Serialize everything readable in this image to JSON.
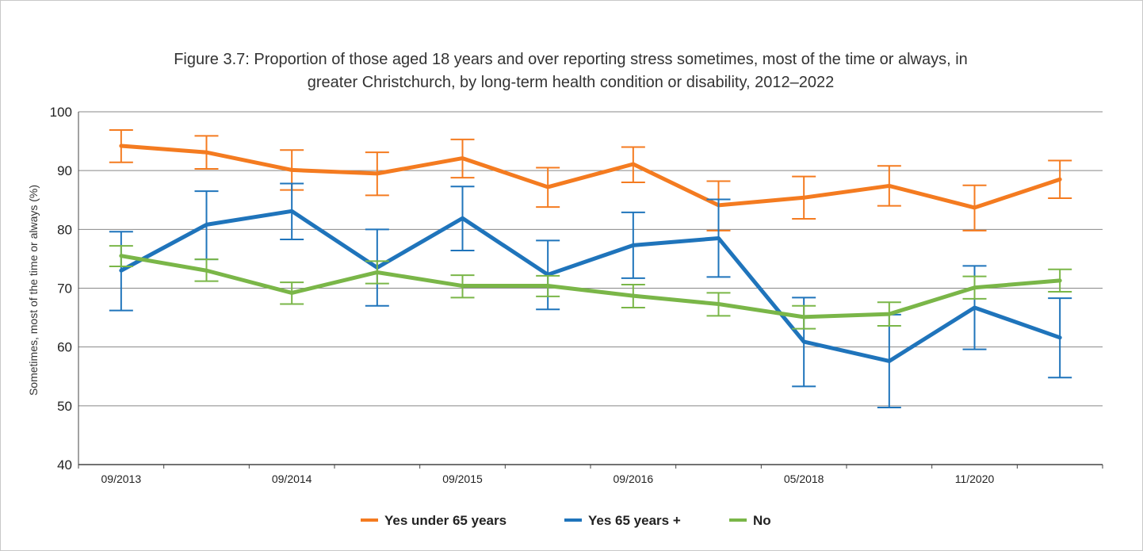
{
  "chart_data": {
    "type": "line",
    "title_line1": "Figure 3.7: Proportion of those aged 18 years and over reporting stress sometimes, most of the time or always, in",
    "title_line2": "greater Christchurch, by long-term health condition or disability, 2012–2022",
    "ylabel": "Sometimes, most of the time or always (%)",
    "xlabel": "",
    "ylim": [
      40,
      100
    ],
    "yticks": [
      40,
      50,
      60,
      70,
      80,
      90,
      100
    ],
    "x_tick_labels": [
      "09/2013",
      "",
      "09/2014",
      "",
      "09/2015",
      "",
      "09/2016",
      "",
      "05/2018",
      "",
      "11/2020",
      ""
    ],
    "grid": true,
    "legend_position": "bottom",
    "series": [
      {
        "name": "Yes under 65 years",
        "color": "#f47b20",
        "values": [
          94.2,
          93.1,
          90.1,
          89.5,
          92.1,
          87.2,
          91.1,
          84.1,
          85.4,
          87.4,
          83.7,
          88.5
        ],
        "lower": [
          91.4,
          90.3,
          86.7,
          85.8,
          88.8,
          83.8,
          88.0,
          79.8,
          81.8,
          84.0,
          79.8,
          85.3
        ],
        "upper": [
          96.9,
          95.9,
          93.5,
          93.1,
          95.3,
          90.5,
          94.0,
          88.2,
          89.0,
          90.8,
          87.5,
          91.7
        ]
      },
      {
        "name": "Yes 65 years +",
        "color": "#1f74bb",
        "values": [
          73.0,
          80.8,
          83.1,
          73.5,
          81.9,
          72.3,
          77.3,
          78.5,
          60.9,
          57.6,
          66.7,
          61.6
        ],
        "lower": [
          66.2,
          74.9,
          78.3,
          67.0,
          76.4,
          66.4,
          71.7,
          71.9,
          53.3,
          49.7,
          59.6,
          54.8
        ],
        "upper": [
          79.6,
          86.5,
          87.8,
          80.0,
          87.3,
          78.1,
          82.9,
          85.1,
          68.4,
          65.5,
          73.8,
          68.3
        ]
      },
      {
        "name": "No",
        "color": "#7ab648",
        "values": [
          75.5,
          73.0,
          69.2,
          72.7,
          70.4,
          70.4,
          68.7,
          67.3,
          65.1,
          65.6,
          70.1,
          71.3
        ],
        "lower": [
          73.7,
          71.2,
          67.3,
          70.8,
          68.4,
          68.6,
          66.7,
          65.3,
          63.1,
          63.6,
          68.2,
          69.4
        ],
        "upper": [
          77.2,
          74.9,
          71.0,
          74.6,
          72.2,
          72.1,
          70.6,
          69.2,
          67.0,
          67.6,
          72.0,
          73.2
        ]
      }
    ]
  }
}
